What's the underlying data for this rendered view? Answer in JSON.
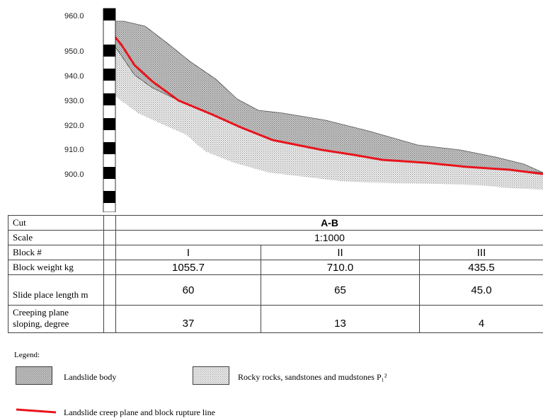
{
  "profile": {
    "elevations": [
      "960.0",
      "950.0",
      "940.0",
      "930.0",
      "920.0",
      "910.0",
      "900.0"
    ]
  },
  "table": {
    "row_labels": {
      "cut": "Cut",
      "scale": "Scale",
      "block": "Block #",
      "weight": "Block weight kg",
      "length": "Slide place length m",
      "sloping_line1": "Creeping plane",
      "sloping_line2": "sloping, degree"
    },
    "cut_value": "A-B",
    "scale_value": "1:1000",
    "blocks": [
      {
        "id": "I",
        "weight": "1055.7",
        "length": "60",
        "slope": "37"
      },
      {
        "id": "II",
        "weight": "710.0",
        "length": "65",
        "slope": "13"
      },
      {
        "id": "III",
        "weight": "435.5",
        "length": "45.0",
        "slope": "4"
      }
    ]
  },
  "legend": {
    "title": "Legend:",
    "landslide_body": "Landslide body",
    "rocky_rocks": "Rocky rocks, sandstones and mudstones P₁²",
    "creep_line": "Landslide creep plane and block rupture line"
  },
  "colors": {
    "creep_line": "#e8141c",
    "fill_stipple": "#9a9a9a",
    "outline": "#444444"
  }
}
